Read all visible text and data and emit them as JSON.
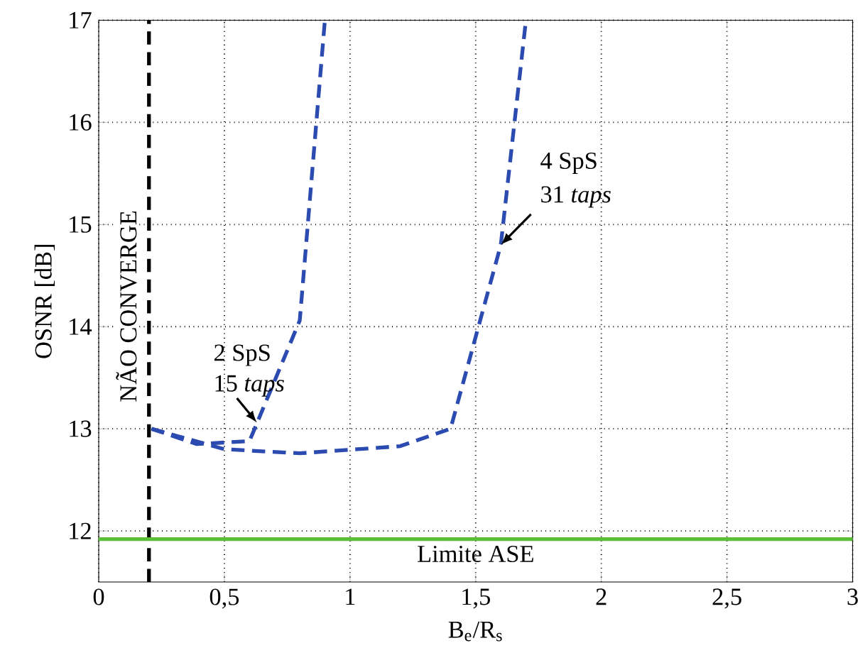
{
  "chart_data": {
    "type": "line",
    "xlabel": "B$_{e}$/R$_{s}$",
    "ylabel": "OSNR [dB]",
    "xlim": [
      0,
      3
    ],
    "ylim": [
      11.5,
      17
    ],
    "xticks": [
      0,
      {
        "value": 0.5,
        "label": "0,5"
      },
      1,
      {
        "value": 1.5,
        "label": "1,5"
      },
      2,
      {
        "value": 2.5,
        "label": "2,5"
      },
      3
    ],
    "yticks": [
      12,
      13,
      14,
      15,
      16,
      17
    ],
    "grid": true,
    "line_style": "dashed",
    "marker": "none",
    "series": [
      {
        "color": "#2b4bb0",
        "x": [
          0.21,
          0.39,
          0.6,
          0.8,
          0.9
        ],
        "values": [
          13.0,
          12.85,
          12.88,
          14.06,
          17
        ]
      },
      {
        "color": "#2b4bb0",
        "x": [
          0.21,
          0.5,
          0.8,
          1.2,
          1.4,
          1.6,
          1.7
        ],
        "values": [
          13.0,
          12.8,
          12.76,
          12.83,
          13.0,
          14.8,
          17
        ]
      }
    ],
    "ref_lines": [
      {
        "axis": "x",
        "value": 0.2,
        "label": "NÃO CONVERGE",
        "color": "#000000",
        "line_style": "dashed"
      },
      {
        "axis": "y",
        "value": 11.92,
        "label": "Limite ASE",
        "color": "#5cbf3a",
        "line_style": "solid"
      }
    ],
    "annotations": [
      {
        "text": "2 SpS",
        "x": 0.63,
        "y": 13.06
      },
      "15 *taps*",
      "4 SpS",
      {
        "text": "31 *taps*",
        "x": 1.6,
        "y": 14.8
      }
    ]
  }
}
